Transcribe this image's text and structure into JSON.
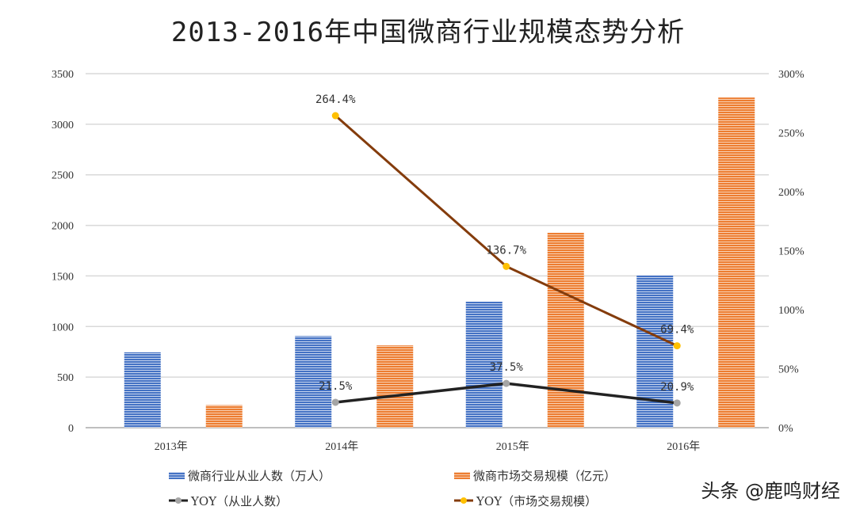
{
  "chart_data": {
    "type": "bar",
    "title": "2013-2016年中国微商行业规模态势分析",
    "categories": [
      "2013年",
      "2014年",
      "2015年",
      "2016年"
    ],
    "y_left": {
      "range": [
        0,
        3500
      ],
      "ticks": [
        "0",
        "500",
        "1000",
        "1500",
        "2000",
        "2500",
        "3000",
        "3500"
      ]
    },
    "y_right": {
      "range": [
        0,
        300
      ],
      "ticks": [
        "0%",
        "50%",
        "100%",
        "150%",
        "200%",
        "250%",
        "300%"
      ]
    },
    "grid": true,
    "legend_placement": "bottom",
    "series": [
      {
        "name": "微商行业从业人数（万人）",
        "type": "bar",
        "axis": "left",
        "color": "#4472c4",
        "values": [
          745,
          906,
          1246,
          1506
        ]
      },
      {
        "name": "微商市场交易规模（亿元）",
        "type": "bar",
        "axis": "left",
        "color": "#ed7d31",
        "values": [
          223,
          813,
          1927,
          3264
        ]
      },
      {
        "name": "YOY（从业人数）",
        "type": "line",
        "axis": "right",
        "color": "#222222",
        "marker_color": "#a5a5a5",
        "values": [
          null,
          21.5,
          37.5,
          20.9
        ],
        "labels": [
          "",
          "21.5%",
          "37.5%",
          "20.9%"
        ]
      },
      {
        "name": "YOY（市场交易规模）",
        "type": "line",
        "axis": "right",
        "color": "#843c0c",
        "marker_color": "#ffc000",
        "values": [
          null,
          264.4,
          136.7,
          69.4
        ],
        "labels": [
          "",
          "264.4%",
          "136.7%",
          "69.4%"
        ]
      }
    ]
  },
  "watermark": "头条 @鹿鸣财经"
}
